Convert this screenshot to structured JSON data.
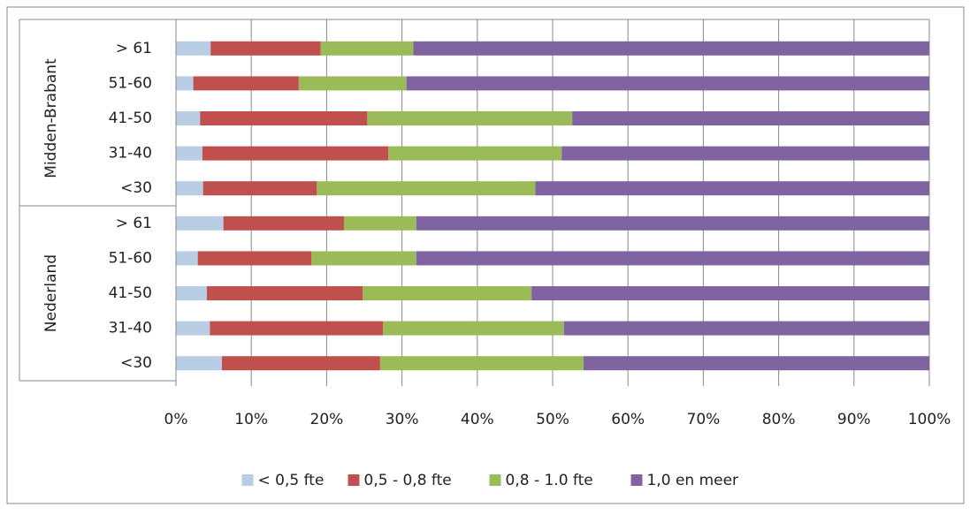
{
  "chart_data": {
    "type": "stacked-bar-horizontal",
    "groups": [
      {
        "name": "Midden-Brabant",
        "categories": [
          "> 61",
          "51-60",
          "41-50",
          "31-40",
          "<30"
        ]
      },
      {
        "name": "Nederland",
        "categories": [
          "> 61",
          "51-60",
          "41-50",
          "31-40",
          "<30"
        ]
      }
    ],
    "series": [
      {
        "name": "< 0,5 fte",
        "color": "#b9cde5",
        "values": [
          4.6,
          2.3,
          3.2,
          3.5,
          3.6,
          6.3,
          2.9,
          4.1,
          4.5,
          6.1
        ]
      },
      {
        "name": "0,5 - 0,8 fte",
        "color": "#c0504d",
        "values": [
          14.6,
          14.0,
          22.2,
          24.7,
          15.1,
          16.0,
          15.1,
          20.7,
          23.0,
          21.0
        ]
      },
      {
        "name": "0,8 - 1.0 fte",
        "color": "#9bbb59",
        "values": [
          12.3,
          14.3,
          27.2,
          23.0,
          29.0,
          9.6,
          13.9,
          22.4,
          24.0,
          27.0
        ]
      },
      {
        "name": "1,0 en meer",
        "color": "#8064a2",
        "values": [
          68.5,
          69.4,
          47.4,
          48.8,
          52.3,
          68.1,
          68.1,
          52.8,
          48.5,
          45.9
        ]
      }
    ],
    "xlim": [
      0,
      100
    ],
    "xticks": [
      {
        "value": 0,
        "label": "0%"
      },
      {
        "value": 10,
        "label": "10%"
      },
      {
        "value": 20,
        "label": "20%"
      },
      {
        "value": 30,
        "label": "30%"
      },
      {
        "value": 40,
        "label": "40%"
      },
      {
        "value": 50,
        "label": "50%"
      },
      {
        "value": 60,
        "label": "60%"
      },
      {
        "value": 70,
        "label": "70%"
      },
      {
        "value": 80,
        "label": "80%"
      },
      {
        "value": 90,
        "label": "90%"
      },
      {
        "value": 100,
        "label": "100%"
      }
    ],
    "grid": true,
    "legend": "bottom"
  }
}
